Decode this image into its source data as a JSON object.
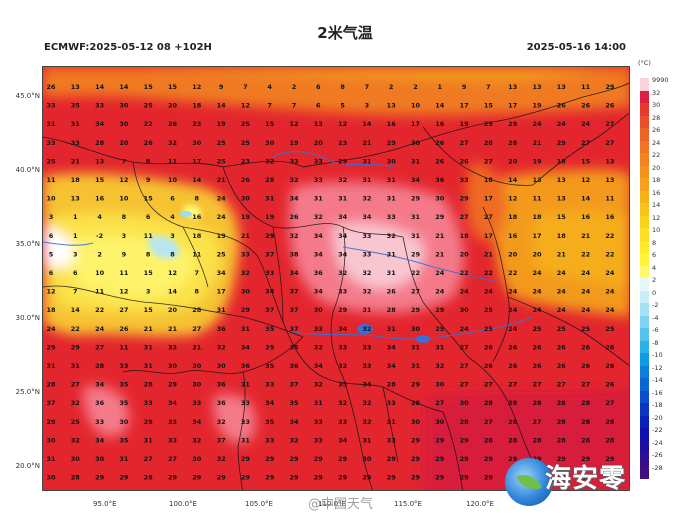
{
  "title": "2米气温",
  "run_label": "ECMWF:2025-05-12 08 +102H",
  "valid_label": "2025-05-16 14:00",
  "watermark": "@中国天气",
  "brand": "海安零",
  "axes": {
    "latitudes": [
      "45.0°N",
      "40.0°N",
      "35.0°N",
      "30.0°N",
      "25.0°N",
      "20.0°N"
    ],
    "longitudes": [
      "95.0°E",
      "100.0°E",
      "105.0°E",
      "110.0°E",
      "115.0°E",
      "120.0°E"
    ]
  },
  "colorbar": {
    "unit": "(°C)",
    "labels": [
      "9990",
      "32",
      "30",
      "28",
      "26",
      "24",
      "22",
      "20",
      "18",
      "16",
      "14",
      "12",
      "10",
      "8",
      "6",
      "4",
      "2",
      "0",
      "-2",
      "-4",
      "-6",
      "-8",
      "-10",
      "-12",
      "-14",
      "-16",
      "-18",
      "-20",
      "-22",
      "-24",
      "-26",
      "-28"
    ],
    "colors": [
      "#f9d2dc",
      "#e02040",
      "#e63a2e",
      "#eb4f2a",
      "#ee6326",
      "#f07523",
      "#f28420",
      "#f4931c",
      "#f6a21a",
      "#f8b219",
      "#f9c21a",
      "#fbd21d",
      "#fcdf22",
      "#fdeb2a",
      "#fef43a",
      "#fefa6a",
      "#e8f6f8",
      "#c8eef6",
      "#a2e2f4",
      "#7cd4f0",
      "#54c4ec",
      "#2ab2e8",
      "#0d9be2",
      "#0a80dc",
      "#0a66d4",
      "#0a4ccc",
      "#0a34c4",
      "#0a20bc",
      "#1010b0",
      "#2010a0",
      "#301090",
      "#401080"
    ]
  },
  "values": [
    [
      "26",
      "13",
      "14",
      "14",
      "15",
      "15",
      "12",
      "9",
      "7",
      "4",
      "2",
      "6",
      "8",
      "7",
      "2",
      "2",
      "1",
      "9",
      "7",
      "13",
      "13",
      "13",
      "11",
      "29"
    ],
    [
      "33",
      "35",
      "33",
      "30",
      "25",
      "20",
      "18",
      "14",
      "12",
      "7",
      "7",
      "6",
      "5",
      "3",
      "13",
      "10",
      "14",
      "17",
      "15",
      "17",
      "19",
      "26",
      "26",
      "26"
    ],
    [
      "31",
      "31",
      "34",
      "30",
      "22",
      "26",
      "23",
      "19",
      "25",
      "15",
      "12",
      "13",
      "12",
      "14",
      "16",
      "17",
      "16",
      "19",
      "25",
      "29",
      "24",
      "24",
      "24",
      "27"
    ],
    [
      "33",
      "33",
      "28",
      "20",
      "26",
      "32",
      "30",
      "25",
      "25",
      "30",
      "19",
      "20",
      "23",
      "21",
      "29",
      "30",
      "26",
      "27",
      "28",
      "28",
      "21",
      "29",
      "27",
      "27"
    ],
    [
      "25",
      "21",
      "13",
      "7",
      "8",
      "11",
      "17",
      "25",
      "23",
      "32",
      "33",
      "33",
      "29",
      "31",
      "30",
      "31",
      "26",
      "26",
      "27",
      "20",
      "19",
      "18",
      "15",
      "13"
    ],
    [
      "11",
      "18",
      "15",
      "12",
      "9",
      "10",
      "14",
      "21",
      "26",
      "28",
      "32",
      "33",
      "32",
      "31",
      "31",
      "34",
      "36",
      "33",
      "18",
      "14",
      "13",
      "13",
      "12",
      "13"
    ],
    [
      "10",
      "13",
      "16",
      "10",
      "15",
      "6",
      "8",
      "24",
      "30",
      "31",
      "34",
      "31",
      "31",
      "32",
      "31",
      "29",
      "30",
      "29",
      "17",
      "12",
      "11",
      "13",
      "14",
      "11"
    ],
    [
      "3",
      "1",
      "4",
      "8",
      "6",
      "4",
      "16",
      "24",
      "19",
      "19",
      "26",
      "32",
      "34",
      "34",
      "33",
      "31",
      "29",
      "27",
      "27",
      "18",
      "18",
      "15",
      "16",
      "16"
    ],
    [
      "6",
      "1",
      "-2",
      "3",
      "11",
      "3",
      "18",
      "19",
      "21",
      "29",
      "32",
      "34",
      "34",
      "33",
      "32",
      "31",
      "21",
      "18",
      "17",
      "16",
      "17",
      "18",
      "21",
      "22"
    ],
    [
      "5",
      "3",
      "2",
      "9",
      "8",
      "8",
      "11",
      "25",
      "33",
      "37",
      "38",
      "34",
      "34",
      "33",
      "31",
      "29",
      "21",
      "20",
      "21",
      "20",
      "20",
      "21",
      "22",
      "22"
    ],
    [
      "6",
      "6",
      "10",
      "11",
      "15",
      "12",
      "7",
      "34",
      "32",
      "33",
      "34",
      "36",
      "32",
      "32",
      "31",
      "22",
      "24",
      "22",
      "22",
      "22",
      "24",
      "24",
      "24",
      "24"
    ],
    [
      "12",
      "7",
      "11",
      "12",
      "3",
      "14",
      "8",
      "17",
      "30",
      "34",
      "37",
      "34",
      "33",
      "32",
      "26",
      "27",
      "24",
      "24",
      "24",
      "24",
      "24",
      "24",
      "24",
      "24"
    ],
    [
      "18",
      "14",
      "22",
      "27",
      "15",
      "20",
      "28",
      "31",
      "29",
      "37",
      "37",
      "30",
      "29",
      "31",
      "28",
      "29",
      "29",
      "30",
      "25",
      "24",
      "24",
      "24",
      "24",
      "24"
    ],
    [
      "24",
      "22",
      "24",
      "26",
      "21",
      "21",
      "27",
      "36",
      "31",
      "35",
      "37",
      "33",
      "34",
      "32",
      "31",
      "30",
      "25",
      "24",
      "25",
      "24",
      "25",
      "25",
      "25",
      "25"
    ],
    [
      "29",
      "29",
      "27",
      "11",
      "31",
      "33",
      "21",
      "32",
      "34",
      "29",
      "35",
      "32",
      "33",
      "33",
      "34",
      "31",
      "31",
      "27",
      "26",
      "26",
      "26",
      "26",
      "26",
      "26"
    ],
    [
      "31",
      "31",
      "28",
      "33",
      "31",
      "30",
      "30",
      "30",
      "36",
      "35",
      "36",
      "34",
      "32",
      "33",
      "34",
      "31",
      "32",
      "27",
      "26",
      "26",
      "26",
      "26",
      "26",
      "26"
    ],
    [
      "28",
      "27",
      "34",
      "35",
      "28",
      "29",
      "30",
      "36",
      "31",
      "33",
      "37",
      "32",
      "35",
      "34",
      "28",
      "29",
      "30",
      "27",
      "27",
      "27",
      "27",
      "27",
      "27",
      "26"
    ],
    [
      "37",
      "32",
      "36",
      "35",
      "33",
      "34",
      "33",
      "36",
      "33",
      "34",
      "35",
      "31",
      "32",
      "32",
      "33",
      "28",
      "27",
      "30",
      "28",
      "28",
      "28",
      "28",
      "28",
      "27"
    ],
    [
      "29",
      "25",
      "33",
      "30",
      "29",
      "33",
      "34",
      "32",
      "33",
      "35",
      "34",
      "33",
      "33",
      "32",
      "31",
      "30",
      "30",
      "28",
      "27",
      "28",
      "27",
      "28",
      "28",
      "28"
    ],
    [
      "30",
      "32",
      "34",
      "35",
      "31",
      "33",
      "32",
      "37",
      "31",
      "33",
      "32",
      "33",
      "34",
      "31",
      "33",
      "29",
      "29",
      "29",
      "28",
      "28",
      "28",
      "28",
      "28",
      "28"
    ],
    [
      "31",
      "30",
      "30",
      "31",
      "27",
      "27",
      "30",
      "32",
      "29",
      "29",
      "29",
      "29",
      "29",
      "30",
      "29",
      "29",
      "29",
      "29",
      "29",
      "29",
      "29",
      "29",
      "29",
      "29"
    ],
    [
      "30",
      "28",
      "29",
      "29",
      "28",
      "29",
      "29",
      "29",
      "29",
      "29",
      "29",
      "29",
      "29",
      "29",
      "29",
      "29",
      "29",
      "29",
      "29",
      "29",
      "29",
      "29",
      "29",
      "29"
    ]
  ]
}
